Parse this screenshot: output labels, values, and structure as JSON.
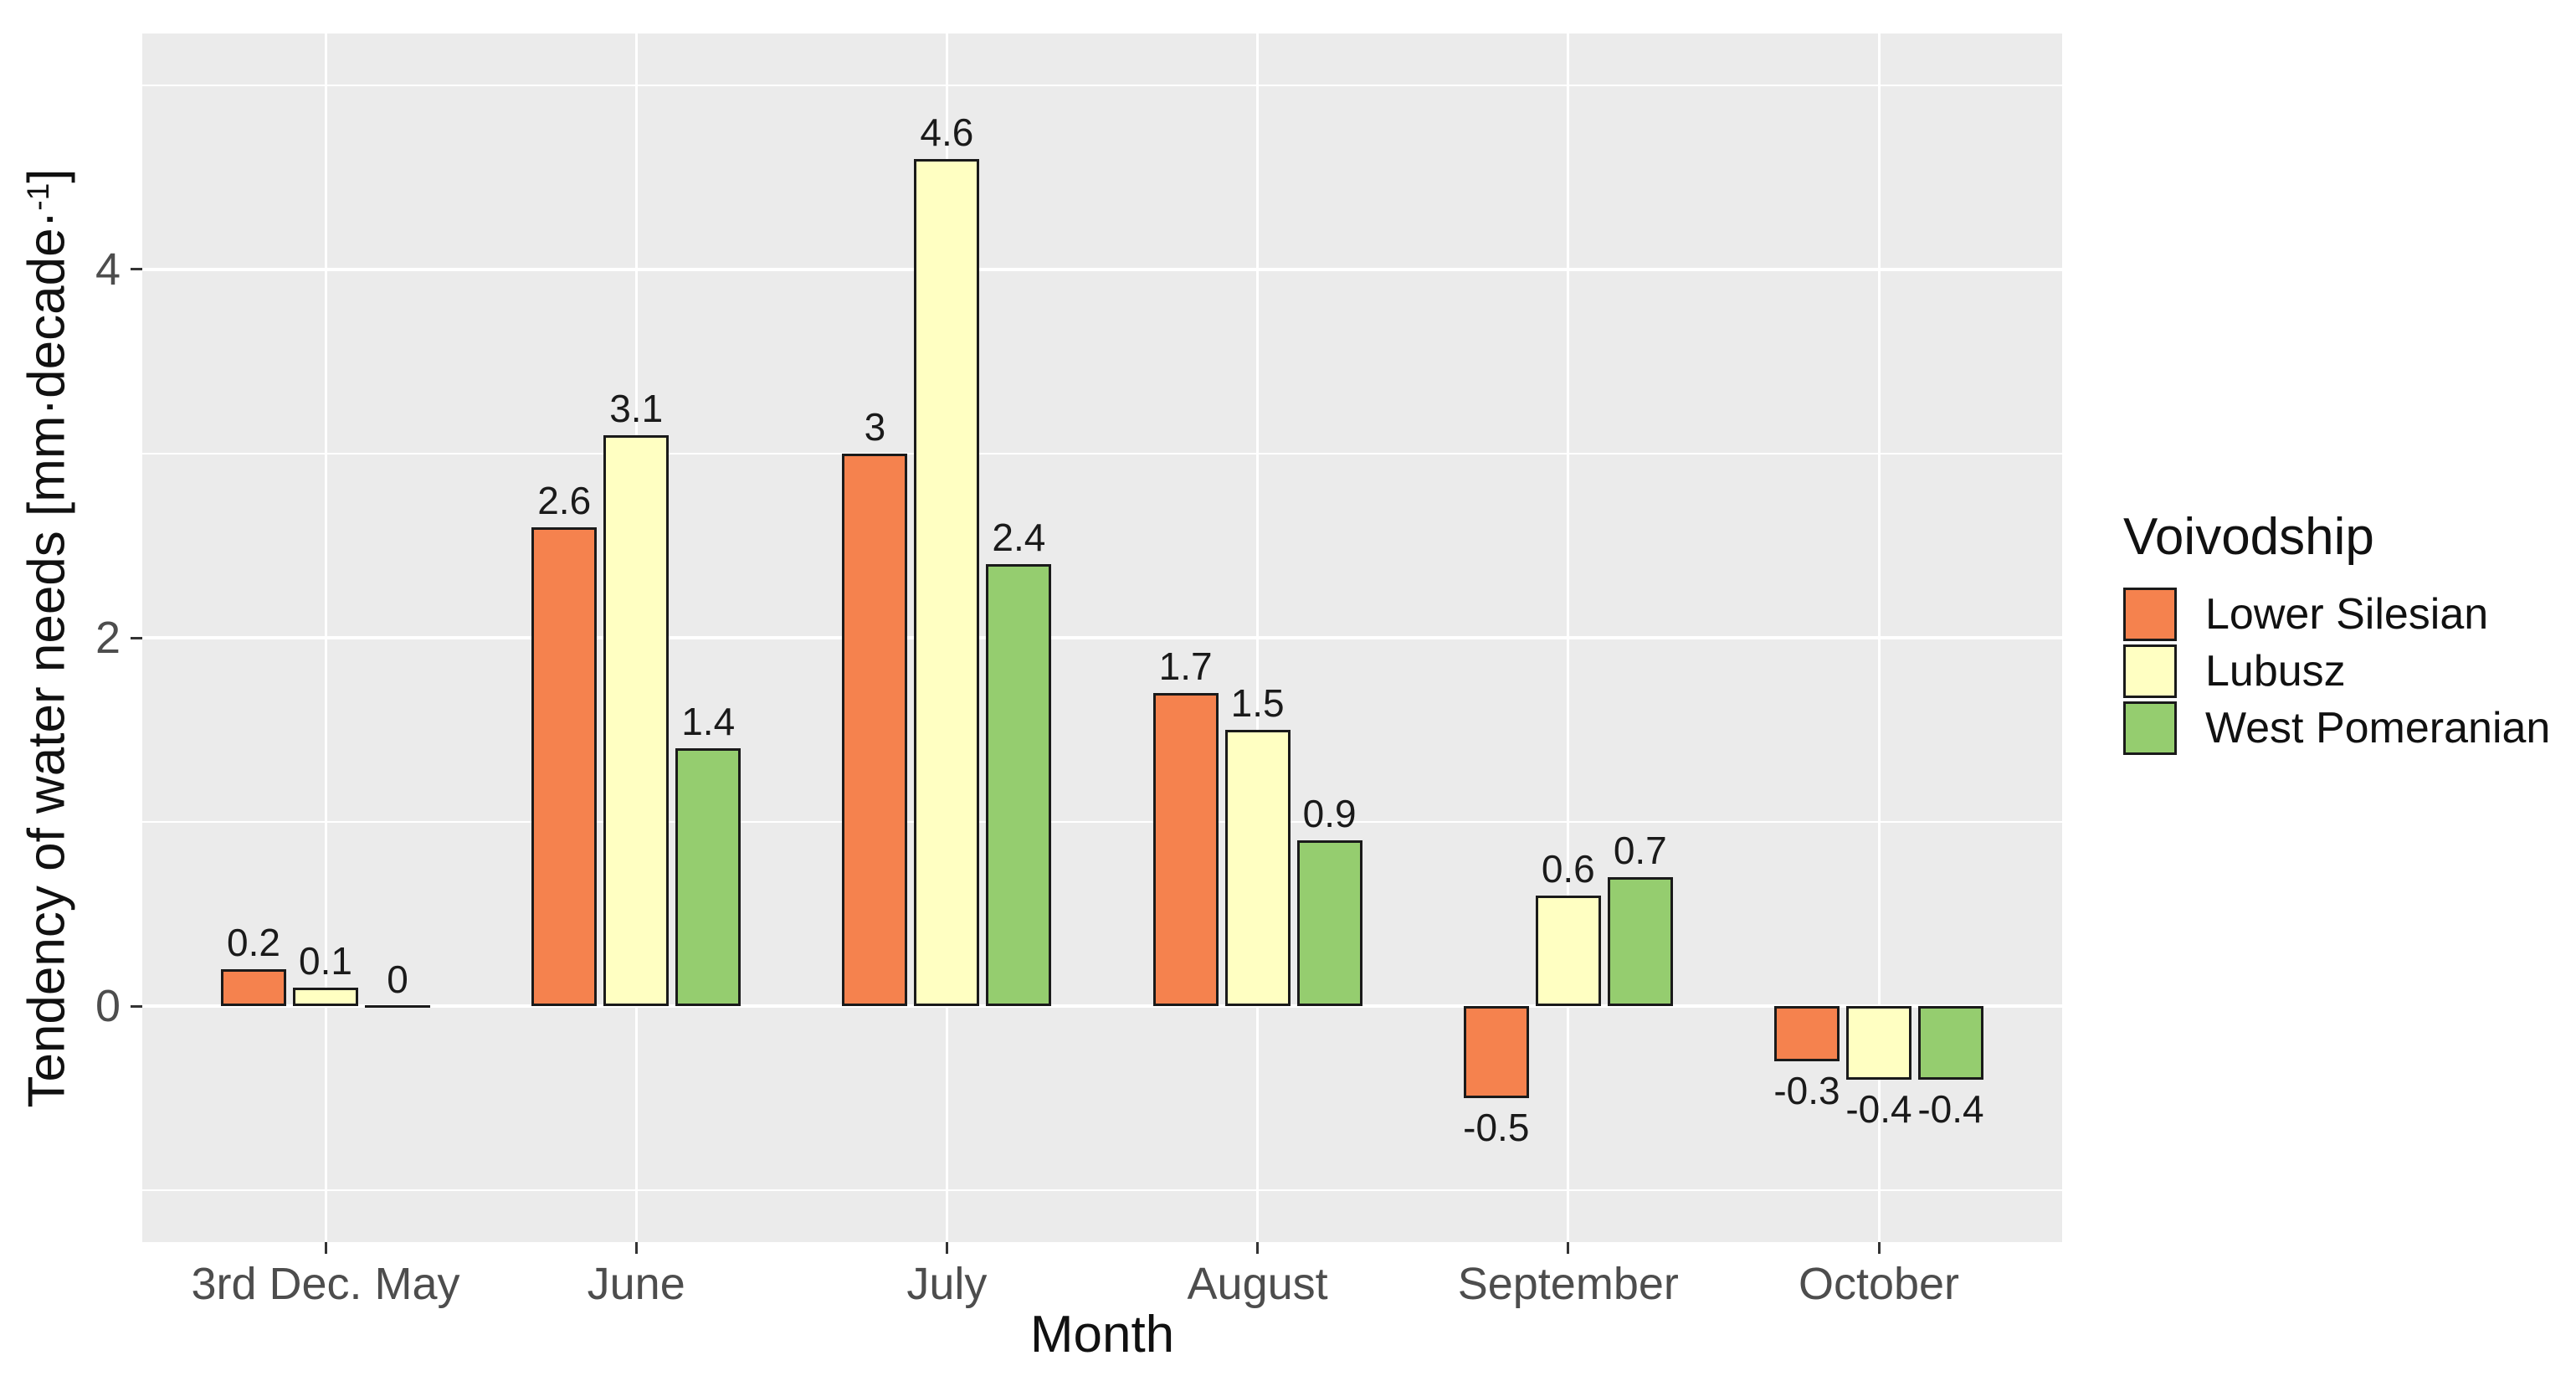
{
  "chart_data": {
    "type": "bar",
    "title": "",
    "xlabel": "Month",
    "ylabel": "Tendency of water needs [mm·decade·⁻¹]",
    "ylabel_parts": {
      "pre": "Tendency of water needs [mm·decade·",
      "sup": "-1",
      "post": "]"
    },
    "categories": [
      "3rd Dec. May",
      "June",
      "July",
      "August",
      "September",
      "October"
    ],
    "series": [
      {
        "name": "Lower Silesian",
        "color": "#F5824E",
        "values": [
          0.2,
          2.6,
          3,
          1.7,
          -0.5,
          -0.3
        ],
        "labels": [
          "0.2",
          "2.6",
          "3",
          "1.7",
          "-0.5",
          "-0.3"
        ]
      },
      {
        "name": "Lubusz",
        "color": "#FFFFC2",
        "values": [
          0.1,
          3.1,
          4.6,
          1.5,
          0.6,
          -0.4
        ],
        "labels": [
          "0.1",
          "3.1",
          "4.6",
          "1.5",
          "0.6",
          "-0.4"
        ]
      },
      {
        "name": "West Pomeranian",
        "color": "#95CD6F",
        "values": [
          0,
          1.4,
          2.4,
          0.9,
          0.7,
          -0.4
        ],
        "labels": [
          "0",
          "1.4",
          "2.4",
          "0.9",
          "0.7",
          "-0.4"
        ]
      }
    ],
    "y_axis": {
      "ticks": [
        {
          "value": 0,
          "label": "0"
        },
        {
          "value": 2,
          "label": "2"
        },
        {
          "value": 4,
          "label": "4"
        }
      ],
      "minor_ticks": [
        -1,
        1,
        3,
        5
      ],
      "ylim": [
        -1.28,
        5.28
      ]
    },
    "grid": true,
    "legend_position": "right",
    "colors": {
      "panel_background": "#EBEBEB",
      "grid": "#FFFFFF",
      "bar_stroke": "#1A1A1A",
      "tick_label": "#4D4D4D",
      "axis_title": "#111111",
      "bar_label": "#1A1A1A"
    }
  },
  "legend": {
    "title": "Voivodship"
  }
}
